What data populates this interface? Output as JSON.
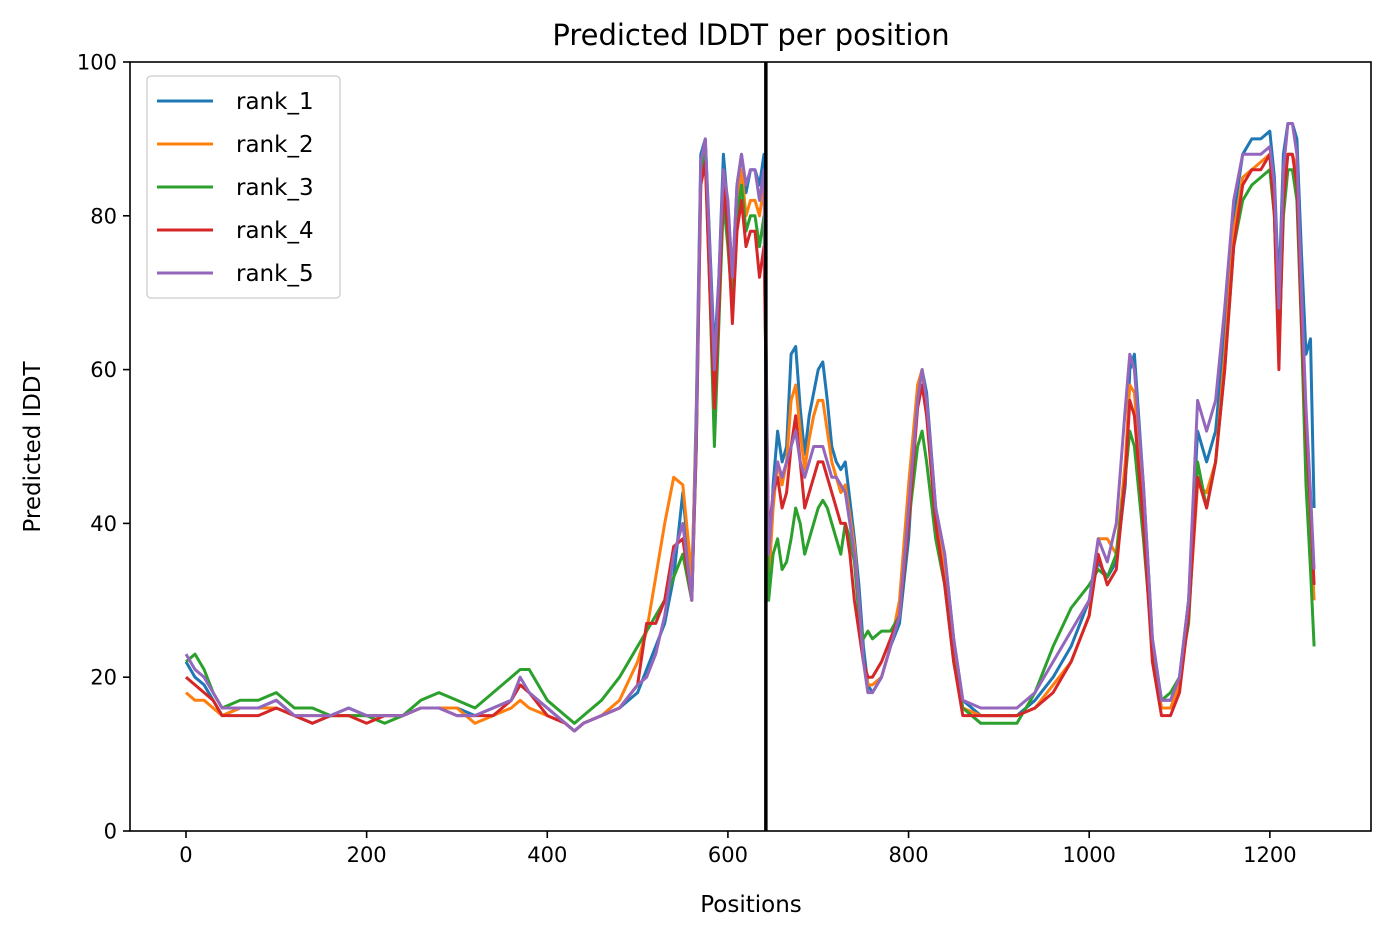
{
  "chart_data": {
    "type": "line",
    "title": "Predicted lDDT per position",
    "xlabel": "Positions",
    "ylabel": "Predicted lDDT",
    "xlim": [
      -62,
      1312
    ],
    "ylim": [
      0,
      100
    ],
    "x_ticks": [
      "0",
      "200",
      "400",
      "600",
      "800",
      "1000",
      "1200"
    ],
    "x_tick_values": [
      0,
      200,
      400,
      600,
      800,
      1000,
      1200
    ],
    "y_ticks": [
      "0",
      "20",
      "40",
      "60",
      "80",
      "100"
    ],
    "y_tick_values": [
      0,
      20,
      40,
      60,
      80,
      100
    ],
    "grid": false,
    "legend_placement": "top-left",
    "vertical_line_x": 642,
    "vertical_line_color": "#000000",
    "x": [
      0,
      10,
      20,
      30,
      40,
      60,
      80,
      100,
      120,
      140,
      160,
      180,
      200,
      220,
      240,
      260,
      280,
      300,
      320,
      340,
      360,
      370,
      380,
      400,
      420,
      430,
      440,
      460,
      480,
      500,
      510,
      520,
      530,
      540,
      550,
      560,
      565,
      570,
      575,
      580,
      585,
      590,
      595,
      600,
      605,
      610,
      615,
      620,
      625,
      630,
      635,
      640,
      645,
      650,
      655,
      660,
      665,
      670,
      675,
      680,
      685,
      690,
      695,
      700,
      705,
      710,
      715,
      720,
      725,
      730,
      735,
      740,
      745,
      750,
      755,
      760,
      770,
      780,
      790,
      800,
      810,
      815,
      820,
      830,
      840,
      850,
      860,
      880,
      900,
      920,
      940,
      960,
      980,
      1000,
      1010,
      1020,
      1030,
      1040,
      1045,
      1050,
      1060,
      1070,
      1080,
      1090,
      1100,
      1110,
      1120,
      1130,
      1140,
      1150,
      1160,
      1170,
      1180,
      1190,
      1200,
      1205,
      1210,
      1215,
      1220,
      1225,
      1230,
      1235,
      1240,
      1245,
      1249
    ],
    "series": [
      {
        "name": "rank_1",
        "color": "#1f77b4",
        "values": [
          22,
          20,
          19,
          17,
          15,
          16,
          16,
          17,
          15,
          14,
          15,
          16,
          15,
          15,
          15,
          16,
          16,
          16,
          15,
          16,
          17,
          19,
          18,
          16,
          14,
          13,
          14,
          15,
          16,
          18,
          21,
          24,
          27,
          33,
          44,
          31,
          55,
          88,
          90,
          76,
          62,
          72,
          88,
          81,
          72,
          84,
          88,
          83,
          86,
          86,
          84,
          88,
          31,
          45,
          52,
          48,
          50,
          62,
          63,
          55,
          49,
          54,
          57,
          60,
          61,
          56,
          50,
          48,
          47,
          48,
          43,
          38,
          32,
          24,
          19,
          18,
          20,
          24,
          27,
          38,
          57,
          60,
          57,
          42,
          36,
          25,
          17,
          15,
          15,
          15,
          17,
          20,
          24,
          30,
          35,
          33,
          35,
          45,
          60,
          62,
          45,
          25,
          17,
          17,
          20,
          30,
          52,
          48,
          52,
          65,
          80,
          88,
          90,
          90,
          91,
          85,
          70,
          88,
          92,
          92,
          90,
          75,
          62,
          64,
          42
        ]
      },
      {
        "name": "rank_2",
        "color": "#ff7f0e",
        "values": [
          18,
          17,
          17,
          16,
          15,
          16,
          16,
          16,
          15,
          15,
          15,
          15,
          15,
          15,
          15,
          16,
          16,
          16,
          14,
          15,
          16,
          17,
          16,
          15,
          14,
          13,
          14,
          15,
          17,
          22,
          26,
          33,
          40,
          46,
          45,
          33,
          53,
          86,
          89,
          74,
          58,
          70,
          85,
          80,
          70,
          82,
          86,
          80,
          82,
          82,
          80,
          84,
          32,
          42,
          48,
          45,
          48,
          56,
          58,
          52,
          47,
          51,
          54,
          56,
          56,
          52,
          48,
          46,
          44,
          45,
          41,
          37,
          30,
          22,
          19,
          19,
          20,
          24,
          30,
          45,
          58,
          60,
          55,
          40,
          34,
          23,
          16,
          15,
          15,
          15,
          16,
          19,
          22,
          28,
          38,
          38,
          36,
          48,
          58,
          57,
          42,
          24,
          16,
          16,
          19,
          28,
          45,
          44,
          48,
          62,
          78,
          85,
          86,
          87,
          88,
          82,
          66,
          84,
          88,
          88,
          86,
          70,
          48,
          40,
          30
        ]
      },
      {
        "name": "rank_3",
        "color": "#2ca02c",
        "values": [
          22,
          23,
          21,
          18,
          16,
          17,
          17,
          18,
          16,
          16,
          15,
          15,
          15,
          14,
          15,
          17,
          18,
          17,
          16,
          18,
          20,
          21,
          21,
          17,
          15,
          14,
          15,
          17,
          20,
          24,
          26,
          28,
          30,
          33,
          36,
          30,
          50,
          85,
          88,
          70,
          50,
          66,
          82,
          76,
          68,
          80,
          84,
          78,
          80,
          80,
          76,
          80,
          30,
          36,
          38,
          34,
          35,
          38,
          42,
          40,
          36,
          38,
          40,
          42,
          43,
          42,
          40,
          38,
          36,
          40,
          38,
          35,
          28,
          25,
          26,
          25,
          26,
          26,
          28,
          40,
          50,
          52,
          48,
          38,
          32,
          22,
          16,
          14,
          14,
          14,
          18,
          24,
          29,
          32,
          34,
          33,
          36,
          46,
          52,
          50,
          38,
          24,
          17,
          18,
          20,
          27,
          48,
          42,
          48,
          60,
          76,
          82,
          84,
          85,
          86,
          80,
          62,
          80,
          86,
          86,
          82,
          65,
          45,
          34,
          24
        ]
      },
      {
        "name": "rank_4",
        "color": "#d62728",
        "values": [
          20,
          19,
          18,
          17,
          15,
          15,
          15,
          16,
          15,
          14,
          15,
          15,
          14,
          15,
          15,
          16,
          16,
          15,
          15,
          15,
          17,
          19,
          18,
          15,
          14,
          13,
          14,
          15,
          16,
          19,
          27,
          27,
          30,
          37,
          38,
          30,
          50,
          84,
          87,
          70,
          55,
          68,
          84,
          78,
          66,
          78,
          82,
          76,
          78,
          78,
          72,
          76,
          38,
          44,
          46,
          42,
          44,
          50,
          54,
          48,
          42,
          44,
          46,
          48,
          48,
          46,
          44,
          42,
          40,
          40,
          36,
          30,
          26,
          22,
          20,
          20,
          22,
          25,
          28,
          40,
          55,
          58,
          54,
          40,
          32,
          22,
          15,
          15,
          15,
          15,
          16,
          18,
          22,
          28,
          36,
          32,
          34,
          46,
          56,
          54,
          40,
          22,
          15,
          15,
          18,
          28,
          46,
          42,
          48,
          60,
          76,
          84,
          86,
          86,
          88,
          80,
          60,
          82,
          88,
          88,
          84,
          66,
          52,
          42,
          32
        ]
      },
      {
        "name": "rank_5",
        "color": "#9467bd",
        "values": [
          23,
          21,
          20,
          18,
          16,
          16,
          16,
          17,
          15,
          15,
          15,
          16,
          15,
          15,
          15,
          16,
          16,
          15,
          15,
          16,
          17,
          20,
          18,
          16,
          14,
          13,
          14,
          15,
          16,
          19,
          20,
          23,
          28,
          36,
          40,
          30,
          52,
          87,
          90,
          75,
          60,
          72,
          86,
          82,
          72,
          84,
          88,
          84,
          86,
          86,
          82,
          86,
          36,
          44,
          48,
          46,
          48,
          50,
          52,
          48,
          46,
          48,
          50,
          50,
          50,
          48,
          46,
          46,
          45,
          44,
          40,
          36,
          30,
          22,
          18,
          18,
          20,
          24,
          28,
          42,
          56,
          60,
          56,
          42,
          36,
          25,
          17,
          16,
          16,
          16,
          18,
          22,
          26,
          30,
          38,
          35,
          40,
          55,
          62,
          60,
          45,
          25,
          17,
          17,
          20,
          30,
          56,
          52,
          56,
          68,
          82,
          88,
          88,
          88,
          89,
          84,
          68,
          86,
          92,
          92,
          88,
          70,
          55,
          44,
          34
        ]
      }
    ]
  }
}
